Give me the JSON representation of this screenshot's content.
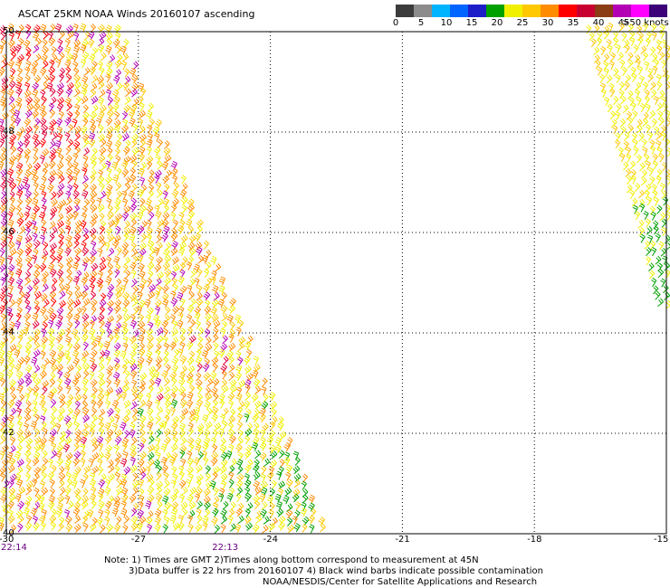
{
  "title": "ASCAT 25KM NOAA Winds 20160107 ascending",
  "legend": {
    "colors": [
      "#3c3c3c",
      "#8c8c8c",
      "#00b4ff",
      "#0064ff",
      "#1e1ec8",
      "#00a000",
      "#f0f000",
      "#ffc800",
      "#ff8c00",
      "#ff0000",
      "#c80032",
      "#8c3c14",
      "#b400b4",
      "#ff00ff",
      "#3c0078"
    ],
    "labels": [
      "0",
      "5",
      "10",
      "15",
      "20",
      "25",
      "30",
      "35",
      "40",
      "45",
      ">50 knots"
    ]
  },
  "map": {
    "lon_range": [
      -30,
      -15
    ],
    "lat_range": [
      40,
      50
    ],
    "lon_ticks": [
      "-30",
      "-27",
      "-24",
      "-21",
      "-18",
      "-15"
    ],
    "lat_ticks": [
      "50",
      "48",
      "46",
      "44",
      "42",
      "40"
    ],
    "time_labels": [
      {
        "text": "22:14",
        "lon": -30
      },
      {
        "text": "22:13",
        "lon": -25.2
      }
    ]
  },
  "notes": {
    "line1": "Note: 1) Times are GMT 2)Times along bottom correspond to measurement at 45N",
    "line2": "3)Data buffer is 22 hrs from 20160107 4) Black wind barbs indicate possible contamination",
    "line3": "NOAA/NESDIS/Center for Satellite Applications and Research"
  }
}
